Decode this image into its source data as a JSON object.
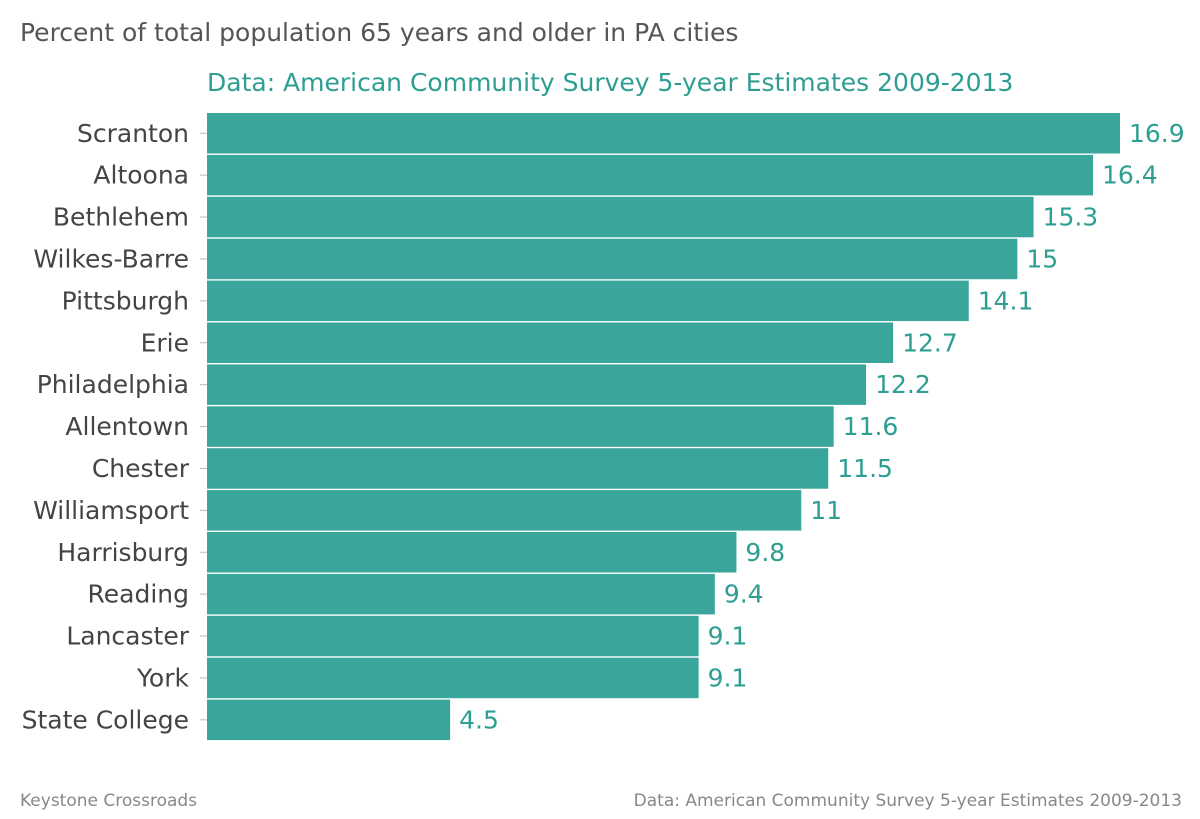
{
  "colors": {
    "bar": "#39A59B",
    "value_label": "#2E9E93",
    "subtitle": "#2E9E93",
    "category_label": "#444444",
    "title": "#555555",
    "footer": "#888888"
  },
  "footer": {
    "left": "Keystone Crossroads",
    "right": "Data: American Community Survey 5-year Estimates 2009-2013"
  },
  "chart_data": {
    "type": "bar",
    "orientation": "horizontal",
    "title": "Percent of total population 65 years and older in PA cities",
    "subtitle": "Data: American Community Survey 5-year Estimates 2009-2013",
    "xlim": [
      0,
      16.9
    ],
    "grid": false,
    "categories": [
      "Scranton",
      "Altoona",
      "Bethlehem",
      "Wilkes-Barre",
      "Pittsburgh",
      "Erie",
      "Philadelphia",
      "Allentown",
      "Chester",
      "Williamsport",
      "Harrisburg",
      "Reading",
      "Lancaster",
      "York",
      "State College"
    ],
    "values": [
      16.9,
      16.4,
      15.3,
      15,
      14.1,
      12.7,
      12.2,
      11.6,
      11.5,
      11,
      9.8,
      9.4,
      9.1,
      9.1,
      4.5
    ],
    "value_labels": [
      "16.9",
      "16.4",
      "15.3",
      "15",
      "14.1",
      "12.7",
      "12.2",
      "11.6",
      "11.5",
      "11",
      "9.8",
      "9.4",
      "9.1",
      "9.1",
      "4.5"
    ]
  }
}
